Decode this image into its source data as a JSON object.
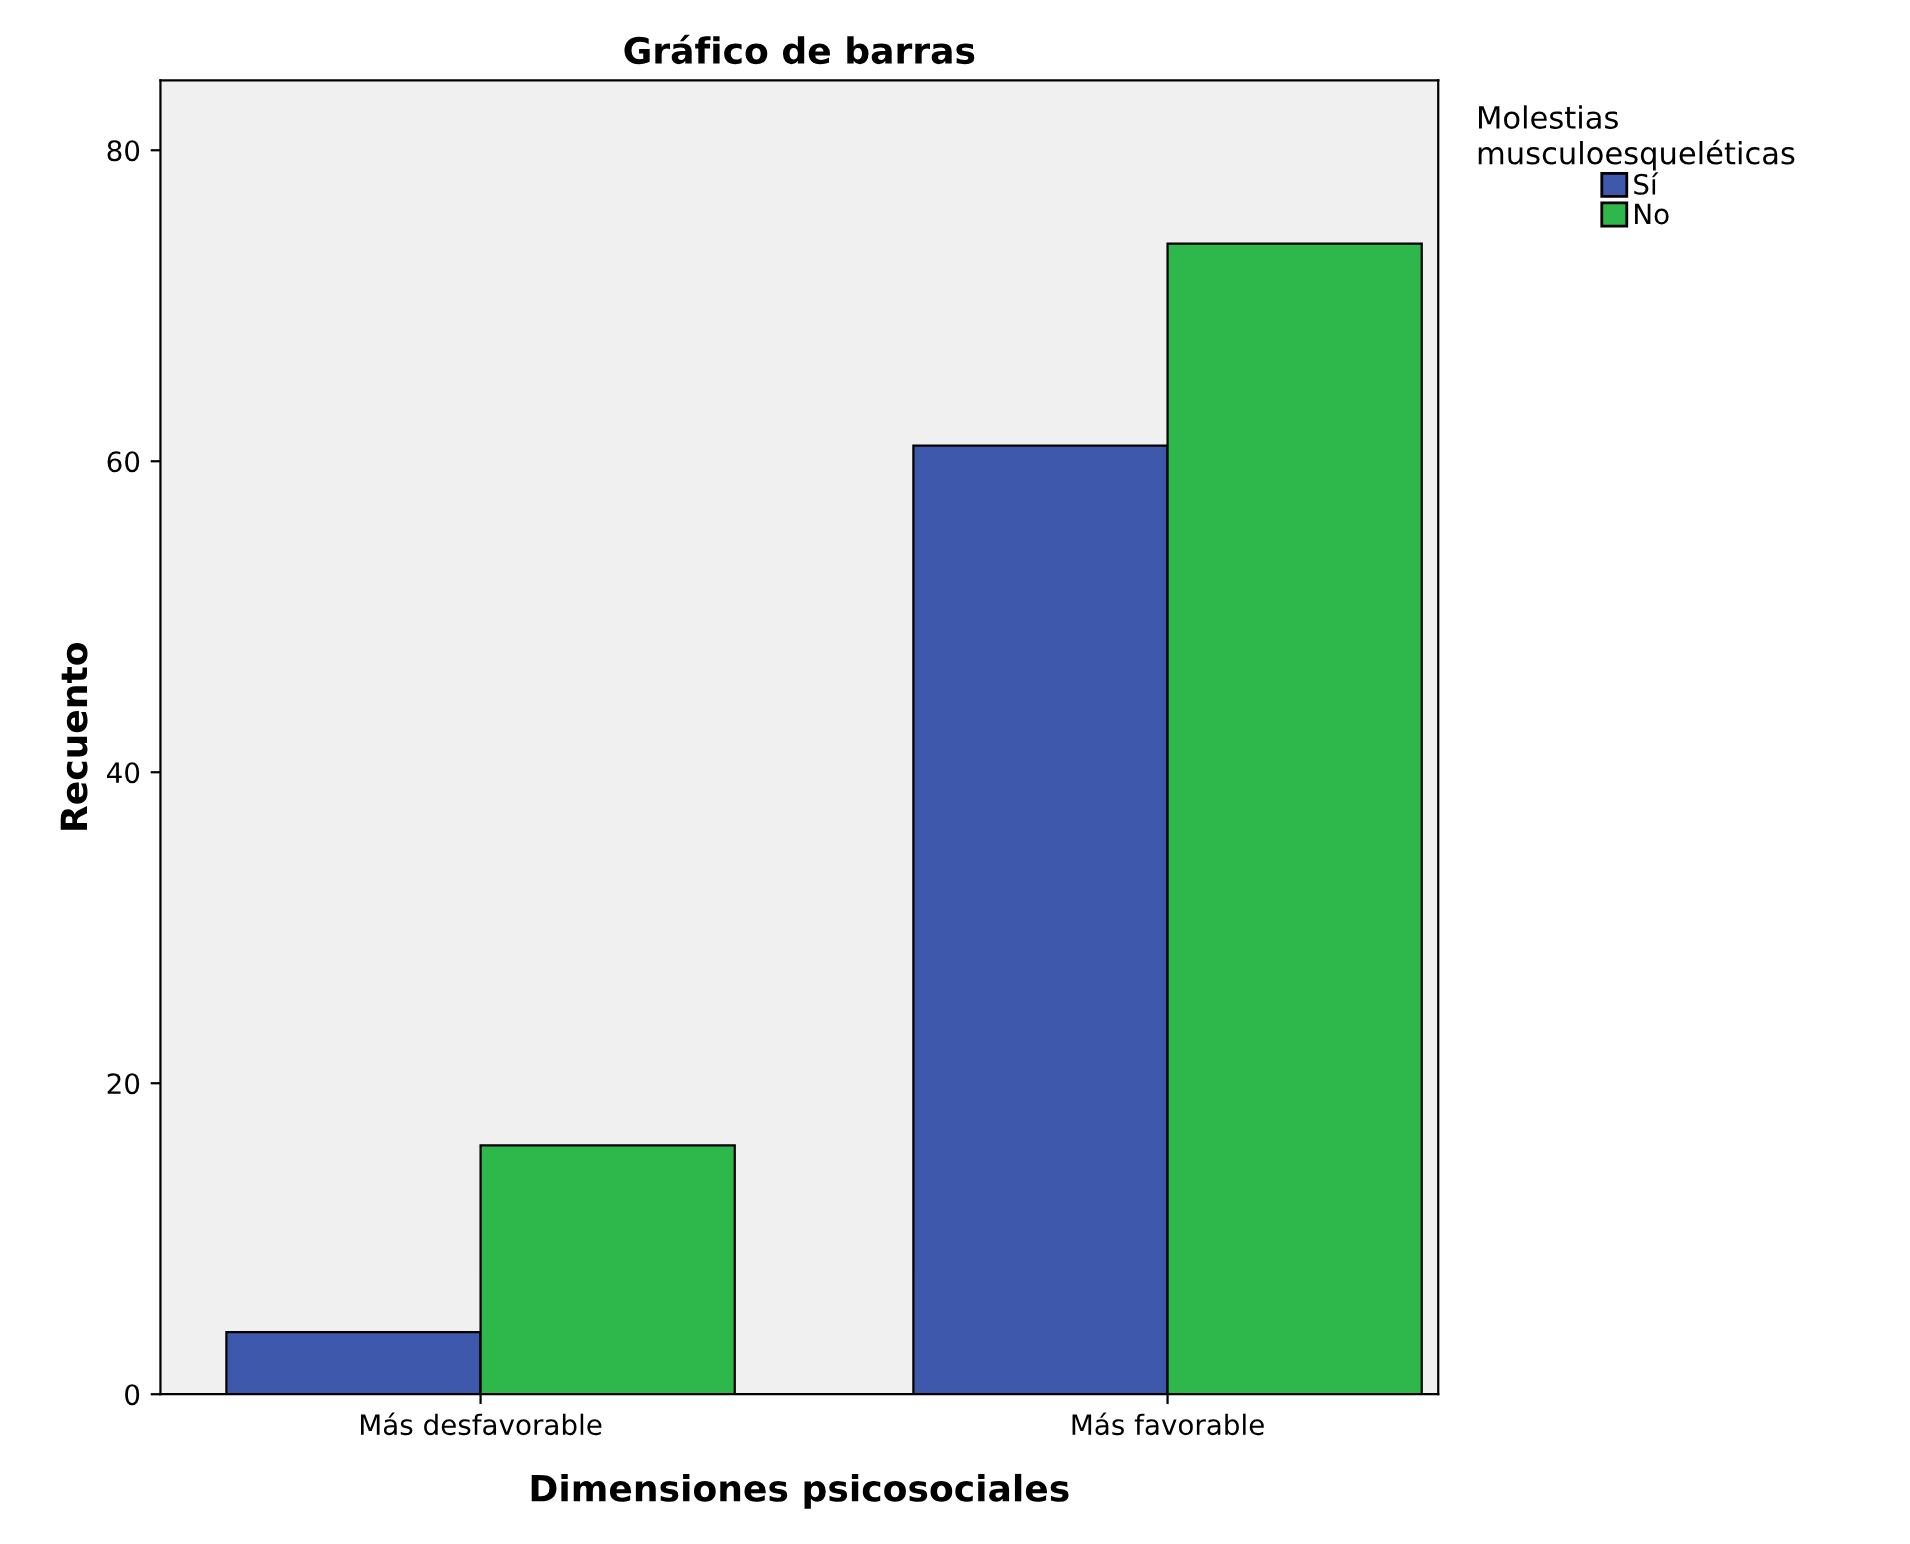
{
  "chart_data": {
    "type": "bar",
    "title": "Gráfico de barras",
    "xlabel": "Dimensiones psicosociales",
    "ylabel": "Recuento",
    "legend_title": "Molestias\nmusculoesqueléticas",
    "categories": [
      "Más desfavorable",
      "Más favorable"
    ],
    "series": [
      {
        "name": "Sí",
        "color": "#3e58ac",
        "values": [
          4,
          61
        ]
      },
      {
        "name": "No",
        "color": "#2eb84b",
        "values": [
          16,
          74
        ]
      }
    ],
    "ylim": [
      0,
      84.5
    ],
    "yticks": [
      0,
      20,
      40,
      60,
      80
    ],
    "grid": false,
    "legend": "top right"
  }
}
